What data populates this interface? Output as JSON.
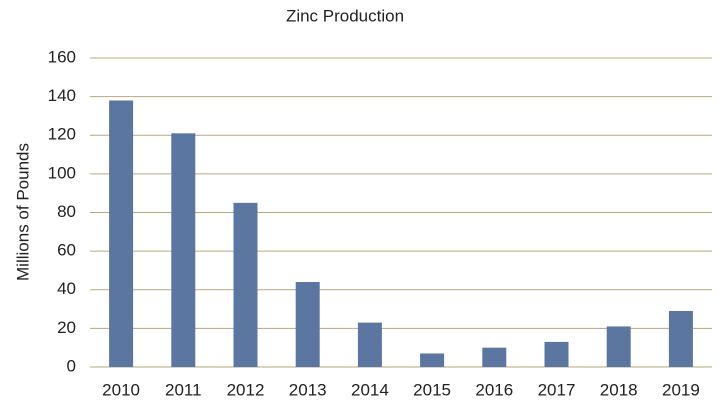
{
  "chart_data": {
    "type": "bar",
    "title": "Zinc Production",
    "y_label": "Millions of Pounds",
    "categories": [
      "2010",
      "2011",
      "2012",
      "2013",
      "2014",
      "2015",
      "2016",
      "2017",
      "2018",
      "2019"
    ],
    "values": [
      138,
      121,
      85,
      44,
      23,
      7,
      10,
      13,
      21,
      29
    ],
    "color": "#5b76a1",
    "ylim": [
      0,
      160
    ],
    "yticks": [
      0,
      20,
      40,
      60,
      80,
      100,
      120,
      140,
      160
    ],
    "grid": true
  }
}
